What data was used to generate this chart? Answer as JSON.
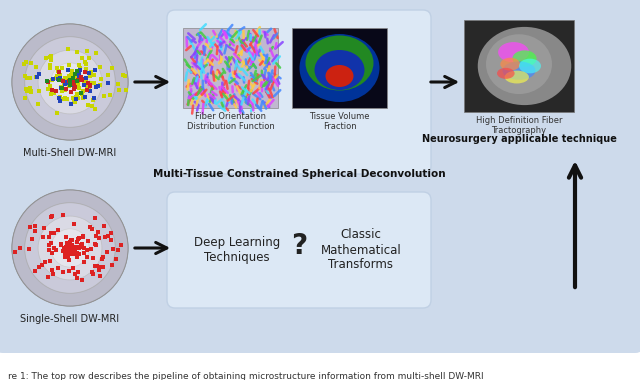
{
  "bg_color": "#cddaeb",
  "caption": "re 1: The top row describes the pipeline of obtaining microstructure information from multi-shell DW-MRI",
  "top_row": {
    "sphere_label": "Multi-Shell DW-MRI",
    "box_label": "Multi-Tissue Constrained Spherical Deconvolution",
    "box_sublabel1": "Fiber Orientation\nDistribution Function",
    "box_sublabel2": "Tissue Volume\nFraction",
    "output_label": "Neurosurgery applicable technique",
    "output_sublabel": "High Definition Fiber\nTractography"
  },
  "bottom_row": {
    "sphere_label": "Single-Shell DW-MRI",
    "box_label1": "Deep Learning\nTechniques",
    "box_label2": "Classic\nMathematical\nTransforms",
    "question_mark": "?"
  },
  "arrow_color": "#111111",
  "box_fill": "#dce8f5",
  "text_color": "#222222"
}
